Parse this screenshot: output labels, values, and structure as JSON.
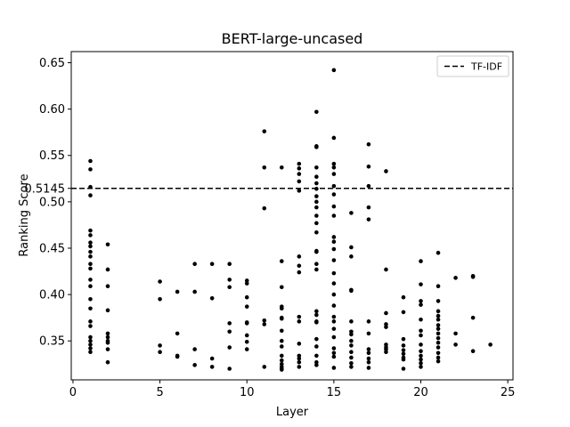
{
  "chart_data": {
    "type": "scatter",
    "title": "BERT-large-uncased",
    "xlabel": "Layer",
    "ylabel": "Ranking Score",
    "xlim": [
      -0.1,
      25.3
    ],
    "ylim": [
      0.308,
      0.662
    ],
    "xticks": [
      0,
      5,
      10,
      15,
      20,
      25
    ],
    "yticks": [
      0.35,
      0.4,
      0.45,
      0.5,
      0.55,
      0.6,
      0.65
    ],
    "yticklabels": [
      "0.35",
      "0.40",
      "0.45",
      "0.50",
      "0.55",
      "0.60",
      "0.65"
    ],
    "grid": false,
    "legend": {
      "position": "top-right",
      "entries": [
        {
          "label": "TF-IDF",
          "style": "dashed"
        }
      ]
    },
    "reference_lines": [
      {
        "name": "TF-IDF",
        "y": 0.5145,
        "label": "0.5145"
      }
    ],
    "series": [
      {
        "color": "#000000",
        "points": [
          [
            1,
            0.544
          ],
          [
            1,
            0.535
          ],
          [
            1,
            0.516
          ],
          [
            1,
            0.507
          ],
          [
            1,
            0.469
          ],
          [
            1,
            0.464
          ],
          [
            1,
            0.456
          ],
          [
            1,
            0.452
          ],
          [
            1,
            0.446
          ],
          [
            1,
            0.441
          ],
          [
            1,
            0.433
          ],
          [
            1,
            0.428
          ],
          [
            1,
            0.416
          ],
          [
            1,
            0.409
          ],
          [
            1,
            0.395
          ],
          [
            1,
            0.385
          ],
          [
            1,
            0.371
          ],
          [
            1,
            0.366
          ],
          [
            1,
            0.354
          ],
          [
            1,
            0.35
          ],
          [
            1,
            0.346
          ],
          [
            1,
            0.342
          ],
          [
            1,
            0.338
          ],
          [
            2,
            0.454
          ],
          [
            2,
            0.427
          ],
          [
            2,
            0.409
          ],
          [
            2,
            0.383
          ],
          [
            2,
            0.358
          ],
          [
            2,
            0.354
          ],
          [
            2,
            0.35
          ],
          [
            2,
            0.348
          ],
          [
            2,
            0.341
          ],
          [
            2,
            0.327
          ],
          [
            5,
            0.414
          ],
          [
            5,
            0.395
          ],
          [
            5,
            0.345
          ],
          [
            5,
            0.338
          ],
          [
            6,
            0.403
          ],
          [
            6,
            0.358
          ],
          [
            6,
            0.334
          ],
          [
            6,
            0.333
          ],
          [
            7,
            0.433
          ],
          [
            7,
            0.403
          ],
          [
            7,
            0.341
          ],
          [
            7,
            0.324
          ],
          [
            8,
            0.433
          ],
          [
            8,
            0.396
          ],
          [
            8,
            0.331
          ],
          [
            8,
            0.322
          ],
          [
            9,
            0.433
          ],
          [
            9,
            0.416
          ],
          [
            9,
            0.408
          ],
          [
            9,
            0.369
          ],
          [
            9,
            0.36
          ],
          [
            9,
            0.343
          ],
          [
            9,
            0.32
          ],
          [
            10,
            0.415
          ],
          [
            10,
            0.412
          ],
          [
            10,
            0.397
          ],
          [
            10,
            0.387
          ],
          [
            10,
            0.37
          ],
          [
            10,
            0.369
          ],
          [
            10,
            0.356
          ],
          [
            10,
            0.349
          ],
          [
            10,
            0.341
          ],
          [
            11,
            0.576
          ],
          [
            11,
            0.537
          ],
          [
            11,
            0.493
          ],
          [
            11,
            0.372
          ],
          [
            11,
            0.368
          ],
          [
            11,
            0.322
          ],
          [
            12,
            0.537
          ],
          [
            12,
            0.436
          ],
          [
            12,
            0.408
          ],
          [
            12,
            0.387
          ],
          [
            12,
            0.385
          ],
          [
            12,
            0.375
          ],
          [
            12,
            0.374
          ],
          [
            12,
            0.361
          ],
          [
            12,
            0.35
          ],
          [
            12,
            0.344
          ],
          [
            12,
            0.334
          ],
          [
            12,
            0.329
          ],
          [
            12,
            0.325
          ],
          [
            12,
            0.322
          ],
          [
            12,
            0.32
          ],
          [
            12,
            0.319
          ],
          [
            13,
            0.541
          ],
          [
            13,
            0.536
          ],
          [
            13,
            0.53
          ],
          [
            13,
            0.522
          ],
          [
            13,
            0.512
          ],
          [
            13,
            0.441
          ],
          [
            13,
            0.431
          ],
          [
            13,
            0.424
          ],
          [
            13,
            0.376
          ],
          [
            13,
            0.371
          ],
          [
            13,
            0.347
          ],
          [
            13,
            0.334
          ],
          [
            13,
            0.331
          ],
          [
            13,
            0.327
          ],
          [
            13,
            0.322
          ],
          [
            14,
            0.597
          ],
          [
            14,
            0.56
          ],
          [
            14,
            0.559
          ],
          [
            14,
            0.537
          ],
          [
            14,
            0.527
          ],
          [
            14,
            0.52
          ],
          [
            14,
            0.514
          ],
          [
            14,
            0.506
          ],
          [
            14,
            0.5
          ],
          [
            14,
            0.494
          ],
          [
            14,
            0.485
          ],
          [
            14,
            0.477
          ],
          [
            14,
            0.467
          ],
          [
            14,
            0.447
          ],
          [
            14,
            0.446
          ],
          [
            14,
            0.433
          ],
          [
            14,
            0.427
          ],
          [
            14,
            0.382
          ],
          [
            14,
            0.378
          ],
          [
            14,
            0.371
          ],
          [
            14,
            0.37
          ],
          [
            14,
            0.352
          ],
          [
            14,
            0.344
          ],
          [
            14,
            0.334
          ],
          [
            14,
            0.327
          ],
          [
            14,
            0.324
          ],
          [
            15,
            0.642
          ],
          [
            15,
            0.569
          ],
          [
            15,
            0.541
          ],
          [
            15,
            0.537
          ],
          [
            15,
            0.53
          ],
          [
            15,
            0.517
          ],
          [
            15,
            0.508
          ],
          [
            15,
            0.495
          ],
          [
            15,
            0.485
          ],
          [
            15,
            0.462
          ],
          [
            15,
            0.457
          ],
          [
            15,
            0.449
          ],
          [
            15,
            0.437
          ],
          [
            15,
            0.423
          ],
          [
            15,
            0.412
          ],
          [
            15,
            0.4
          ],
          [
            15,
            0.388
          ],
          [
            15,
            0.376
          ],
          [
            15,
            0.371
          ],
          [
            15,
            0.363
          ],
          [
            15,
            0.354
          ],
          [
            15,
            0.342
          ],
          [
            15,
            0.337
          ],
          [
            15,
            0.333
          ],
          [
            15,
            0.321
          ],
          [
            16,
            0.488
          ],
          [
            16,
            0.451
          ],
          [
            16,
            0.441
          ],
          [
            16,
            0.405
          ],
          [
            16,
            0.404
          ],
          [
            16,
            0.371
          ],
          [
            16,
            0.36
          ],
          [
            16,
            0.357
          ],
          [
            16,
            0.35
          ],
          [
            16,
            0.345
          ],
          [
            16,
            0.338
          ],
          [
            16,
            0.332
          ],
          [
            16,
            0.326
          ],
          [
            16,
            0.322
          ],
          [
            17,
            0.562
          ],
          [
            17,
            0.538
          ],
          [
            17,
            0.517
          ],
          [
            17,
            0.494
          ],
          [
            17,
            0.481
          ],
          [
            17,
            0.371
          ],
          [
            17,
            0.358
          ],
          [
            17,
            0.341
          ],
          [
            17,
            0.337
          ],
          [
            17,
            0.331
          ],
          [
            17,
            0.327
          ],
          [
            17,
            0.321
          ],
          [
            18,
            0.533
          ],
          [
            18,
            0.427
          ],
          [
            18,
            0.38
          ],
          [
            18,
            0.368
          ],
          [
            18,
            0.365
          ],
          [
            18,
            0.346
          ],
          [
            18,
            0.343
          ],
          [
            18,
            0.341
          ],
          [
            18,
            0.338
          ],
          [
            19,
            0.397
          ],
          [
            19,
            0.381
          ],
          [
            19,
            0.352
          ],
          [
            19,
            0.345
          ],
          [
            19,
            0.34
          ],
          [
            19,
            0.336
          ],
          [
            19,
            0.332
          ],
          [
            19,
            0.33
          ],
          [
            19,
            0.32
          ],
          [
            20,
            0.436
          ],
          [
            20,
            0.411
          ],
          [
            20,
            0.393
          ],
          [
            20,
            0.389
          ],
          [
            20,
            0.373
          ],
          [
            20,
            0.361
          ],
          [
            20,
            0.356
          ],
          [
            20,
            0.346
          ],
          [
            20,
            0.339
          ],
          [
            20,
            0.334
          ],
          [
            20,
            0.33
          ],
          [
            20,
            0.326
          ],
          [
            20,
            0.322
          ],
          [
            21,
            0.445
          ],
          [
            21,
            0.409
          ],
          [
            21,
            0.393
          ],
          [
            21,
            0.382
          ],
          [
            21,
            0.377
          ],
          [
            21,
            0.373
          ],
          [
            21,
            0.367
          ],
          [
            21,
            0.363
          ],
          [
            21,
            0.358
          ],
          [
            21,
            0.353
          ],
          [
            21,
            0.348
          ],
          [
            21,
            0.343
          ],
          [
            21,
            0.337
          ],
          [
            21,
            0.332
          ],
          [
            21,
            0.328
          ],
          [
            22,
            0.418
          ],
          [
            22,
            0.358
          ],
          [
            22,
            0.346
          ],
          [
            23,
            0.42
          ],
          [
            23,
            0.419
          ],
          [
            23,
            0.375
          ],
          [
            23,
            0.339
          ],
          [
            24,
            0.346
          ]
        ]
      }
    ]
  }
}
